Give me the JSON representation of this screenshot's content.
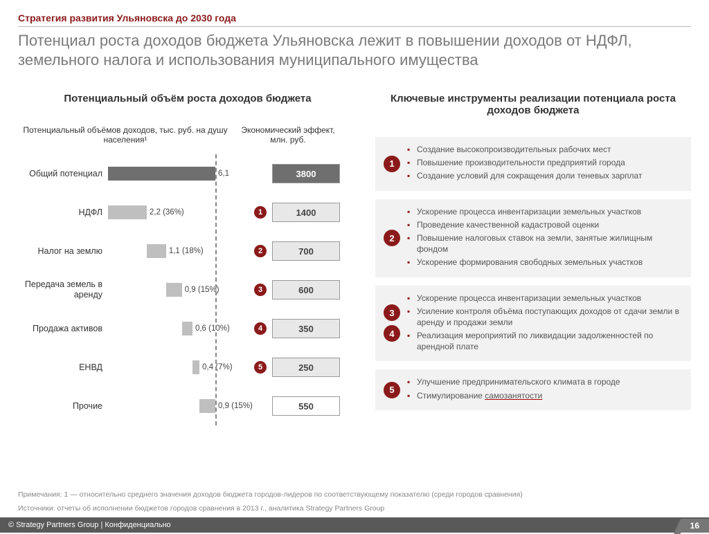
{
  "colors": {
    "accent": "#8b1a1a",
    "badge_bg": "#8b1a1a",
    "instr_bg": "#f2f2f2",
    "bar_total": "#6f6f6f",
    "bar_item": "#bfbfbf",
    "eff_total_bg": "#6f6f6f",
    "eff_total_fg": "#ffffff",
    "eff_item_bg": "#e8e8e8",
    "eff_item_fg": "#444444",
    "eff_other_bg": "#ffffff",
    "bullet_color": "#8b1a1a"
  },
  "crumb": "Стратегия развития Ульяновска до 2030 года",
  "title": "Потенциал роста доходов бюджета Ульяновска лежит в повышении доходов от НДФЛ, земельного налога и использования муниципального имущества",
  "left_title": "Потенциальный объём роста доходов бюджета",
  "right_title": "Ключевые инструменты реализации потенциала роста доходов бюджета",
  "sub1": "Потенциальный объёмов доходов, тыс. руб. на душу населения¹",
  "sub2": "Экономический эффект, млн. руб.",
  "chart": {
    "max": 6.1,
    "rows": [
      {
        "label": "Общий потенциал",
        "value": 6.1,
        "vlabel": "6,1",
        "bar_color": "#6f6f6f",
        "effect": "3800",
        "eff_bg": "#6f6f6f",
        "eff_fg": "#ffffff",
        "badge": "",
        "total": true
      },
      {
        "label": "НДФЛ",
        "value": 2.2,
        "vlabel": "2,2 (36%)",
        "bar_color": "#bfbfbf",
        "effect": "1400",
        "eff_bg": "#e8e8e8",
        "eff_fg": "#444",
        "badge": "1"
      },
      {
        "label": "Налог на землю",
        "value": 1.1,
        "vlabel": "1,1 (18%)",
        "bar_color": "#bfbfbf",
        "effect": "700",
        "eff_bg": "#e8e8e8",
        "eff_fg": "#444",
        "badge": "2"
      },
      {
        "label": "Передача земель в аренду",
        "value": 0.9,
        "vlabel": "0,9 (15%)",
        "bar_color": "#bfbfbf",
        "effect": "600",
        "eff_bg": "#e8e8e8",
        "eff_fg": "#444",
        "badge": "3"
      },
      {
        "label": "Продажа активов",
        "value": 0.6,
        "vlabel": "0,6 (10%)",
        "bar_color": "#bfbfbf",
        "effect": "350",
        "eff_bg": "#e8e8e8",
        "eff_fg": "#444",
        "badge": "4"
      },
      {
        "label": "ЕНВД",
        "value": 0.4,
        "vlabel": "0,4 (7%)",
        "bar_color": "#bfbfbf",
        "effect": "250",
        "eff_bg": "#e8e8e8",
        "eff_fg": "#444",
        "badge": "5"
      },
      {
        "label": "Прочие",
        "value": 0.9,
        "vlabel": "0,9 (15%)",
        "bar_color": "#bfbfbf",
        "effect": "550",
        "eff_bg": "#ffffff",
        "eff_fg": "#444",
        "badge": ""
      }
    ]
  },
  "instruments": [
    {
      "badges": [
        "1"
      ],
      "items": [
        "Создание высокопроизводительных рабочих мест",
        "Повышение производительности предприятий города",
        "Создание условий для сокращения доли теневых зарплат"
      ]
    },
    {
      "badges": [
        "2"
      ],
      "items": [
        "Ускорение процесса инвентаризации земельных участков",
        "Проведение качественной кадастровой оценки",
        "Повышение налоговых ставок на земли, занятые жилищным фондом",
        "Ускорение формирования свободных земельных участков"
      ]
    },
    {
      "badges": [
        "3",
        "4"
      ],
      "items": [
        "Ускорение процесса инвентаризации земельных участков",
        "Усиление контроля объёма поступающих доходов от сдачи земли в аренду и продажи земли",
        "Реализация мероприятий по ликвидации задолженностей по арендной плате"
      ]
    },
    {
      "badges": [
        "5"
      ],
      "items": [
        "Улучшение предпринимательского климата в городе",
        "Стимулирование <span class=\"underline\">самозанятости</span>"
      ]
    }
  ],
  "notes1": "Примечания: 1 — относительно среднего значения доходов бюджета городов-лидеров по соответствующему показателю (среди городов сравнения)",
  "notes2": "Источники: отчеты об исполнении бюджетов городов сравнения в 2013 г., аналитика Strategy Partners Group",
  "foot": "© Strategy Partners Group | Конфиденциально",
  "page": "16"
}
